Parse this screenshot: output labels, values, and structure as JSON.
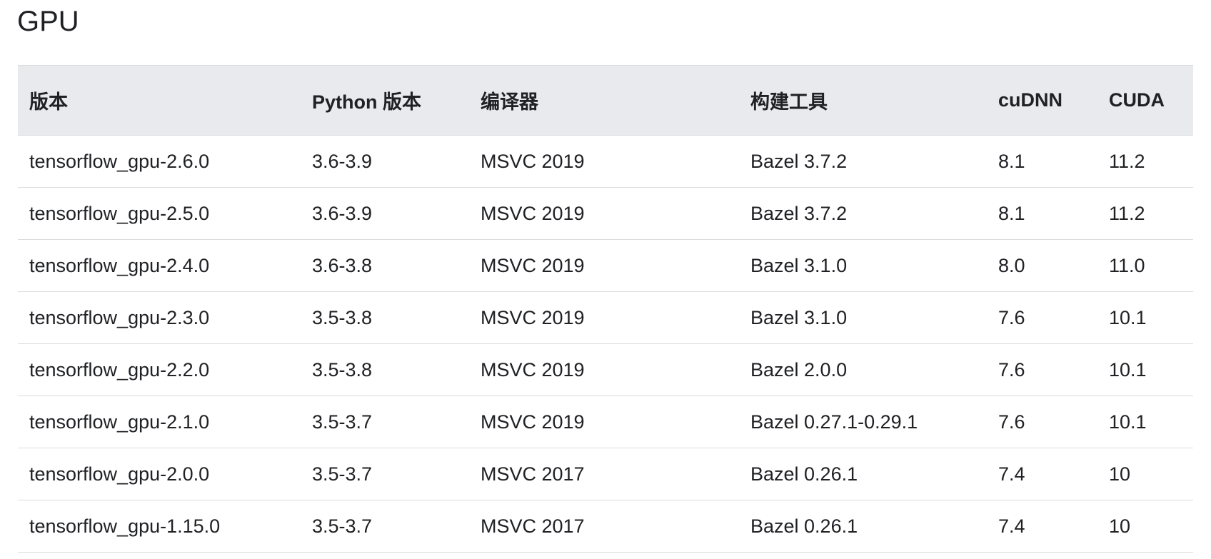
{
  "section": {
    "title": "GPU"
  },
  "table": {
    "headers": [
      "版本",
      "Python 版本",
      "编译器",
      "构建工具",
      "cuDNN",
      "CUDA"
    ],
    "rows": [
      [
        "tensorflow_gpu-2.6.0",
        "3.6-3.9",
        "MSVC 2019",
        "Bazel 3.7.2",
        "8.1",
        "11.2"
      ],
      [
        "tensorflow_gpu-2.5.0",
        "3.6-3.9",
        "MSVC 2019",
        "Bazel 3.7.2",
        "8.1",
        "11.2"
      ],
      [
        "tensorflow_gpu-2.4.0",
        "3.6-3.8",
        "MSVC 2019",
        "Bazel 3.1.0",
        "8.0",
        "11.0"
      ],
      [
        "tensorflow_gpu-2.3.0",
        "3.5-3.8",
        "MSVC 2019",
        "Bazel 3.1.0",
        "7.6",
        "10.1"
      ],
      [
        "tensorflow_gpu-2.2.0",
        "3.5-3.8",
        "MSVC 2019",
        "Bazel 2.0.0",
        "7.6",
        "10.1"
      ],
      [
        "tensorflow_gpu-2.1.0",
        "3.5-3.7",
        "MSVC 2019",
        "Bazel 0.27.1-0.29.1",
        "7.6",
        "10.1"
      ],
      [
        "tensorflow_gpu-2.0.0",
        "3.5-3.7",
        "MSVC 2017",
        "Bazel 0.26.1",
        "7.4",
        "10"
      ],
      [
        "tensorflow_gpu-1.15.0",
        "3.5-3.7",
        "MSVC 2017",
        "Bazel 0.26.1",
        "7.4",
        "10"
      ]
    ]
  }
}
